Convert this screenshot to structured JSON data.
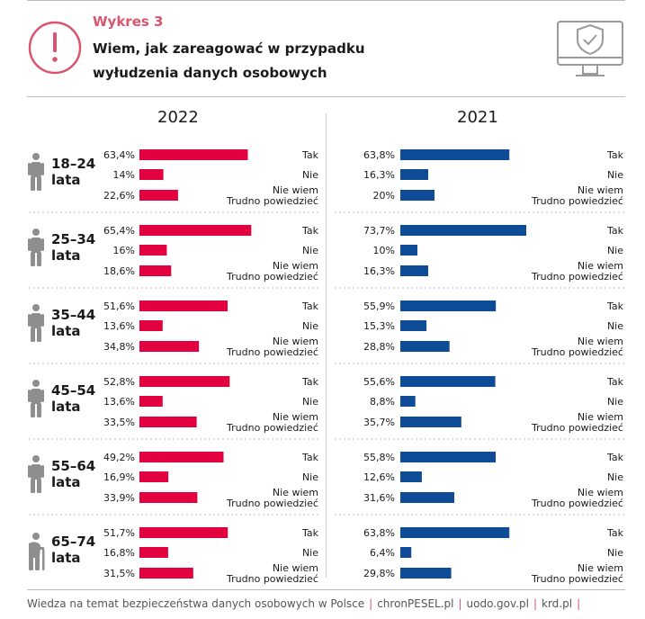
{
  "header": {
    "kicker": "Wykres 3",
    "title_line1": "Wiem, jak zareagować w przypadku",
    "title_line2": "wyłudzenia danych osobowych"
  },
  "colors": {
    "accent": "#d9546f",
    "bar_2022": "#e3003f",
    "bar_2021": "#0f4c97",
    "icon_gray": "#8e8e8e"
  },
  "icons": {
    "alert": "exclamation-circle-icon",
    "monitor": "monitor-shield-check-icon",
    "person": "person-icon",
    "elderly": "elderly-person-icon"
  },
  "chart_data": {
    "type": "bar",
    "orientation": "horizontal",
    "title": "Wiem, jak zareagować w przypadku wyłudzenia danych osobowych",
    "categories": [
      "Tak",
      "Nie",
      "Nie wiem Trudno powiedzieć"
    ],
    "category_labels": [
      [
        "Tak"
      ],
      [
        "Nie"
      ],
      [
        "Nie wiem",
        "Trudno powiedzieć"
      ]
    ],
    "xlim": [
      0,
      100
    ],
    "unit": "%",
    "years": [
      "2022",
      "2021"
    ],
    "groups": [
      {
        "label_line1": "18–24",
        "label_line2": "lata",
        "icon": "person",
        "values_2022": [
          63.4,
          14,
          22.6
        ],
        "labels_2022": [
          "63,4%",
          "14%",
          "22,6%"
        ],
        "values_2021": [
          63.8,
          16.3,
          20
        ],
        "labels_2021": [
          "63,8%",
          "16,3%",
          "20%"
        ]
      },
      {
        "label_line1": "25–34",
        "label_line2": "lata",
        "icon": "person",
        "values_2022": [
          65.4,
          16,
          18.6
        ],
        "labels_2022": [
          "65,4%",
          "16%",
          "18,6%"
        ],
        "values_2021": [
          73.7,
          10,
          16.3
        ],
        "labels_2021": [
          "73,7%",
          "10%",
          "16,3%"
        ]
      },
      {
        "label_line1": "35–44",
        "label_line2": "lata",
        "icon": "person",
        "values_2022": [
          51.6,
          13.6,
          34.8
        ],
        "labels_2022": [
          "51,6%",
          "13,6%",
          "34,8%"
        ],
        "values_2021": [
          55.9,
          15.3,
          28.8
        ],
        "labels_2021": [
          "55,9%",
          "15,3%",
          "28,8%"
        ]
      },
      {
        "label_line1": "45–54",
        "label_line2": "lata",
        "icon": "person",
        "values_2022": [
          52.8,
          13.6,
          33.5
        ],
        "labels_2022": [
          "52,8%",
          "13,6%",
          "33,5%"
        ],
        "values_2021": [
          55.6,
          8.8,
          35.7
        ],
        "labels_2021": [
          "55,6%",
          "8,8%",
          "35,7%"
        ]
      },
      {
        "label_line1": "55–64",
        "label_line2": "lata",
        "icon": "person",
        "values_2022": [
          49.2,
          16.9,
          33.9
        ],
        "labels_2022": [
          "49,2%",
          "16,9%",
          "33,9%"
        ],
        "values_2021": [
          55.8,
          12.6,
          31.6
        ],
        "labels_2021": [
          "55,8%",
          "12,6%",
          "31,6%"
        ]
      },
      {
        "label_line1": "65–74",
        "label_line2": "lata",
        "icon": "elderly",
        "values_2022": [
          51.7,
          16.8,
          31.5
        ],
        "labels_2022": [
          "51,7%",
          "16,8%",
          "31,5%"
        ],
        "values_2021": [
          63.8,
          6.4,
          29.8
        ],
        "labels_2021": [
          "63,8%",
          "6,4%",
          "29,8%"
        ]
      }
    ]
  },
  "footer": {
    "text": "Wiedza na temat bezpieczeństwa danych osobowych w Polsce",
    "links": [
      "chronPESEL.pl",
      "uodo.gov.pl",
      "krd.pl"
    ]
  }
}
